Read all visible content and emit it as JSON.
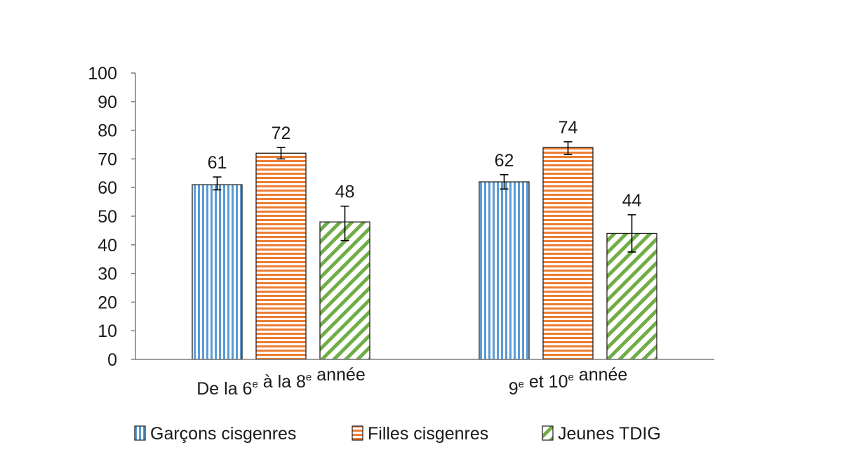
{
  "chart_data": {
    "type": "bar",
    "title": "",
    "xlabel": "",
    "ylabel": "",
    "ylim": [
      0,
      100
    ],
    "yticks": [
      0,
      10,
      20,
      30,
      40,
      50,
      60,
      70,
      80,
      90,
      100
    ],
    "grid": false,
    "legend_position": "bottom",
    "categories": [
      {
        "parts": [
          [
            "De la 6",
            false
          ],
          [
            "e",
            true
          ],
          [
            " à la 8",
            false
          ],
          [
            "e",
            true
          ],
          [
            " année",
            false
          ]
        ]
      },
      {
        "parts": [
          [
            "9",
            false
          ],
          [
            "e",
            true
          ],
          [
            " et 10",
            false
          ],
          [
            "e",
            true
          ],
          [
            " année",
            false
          ]
        ]
      }
    ],
    "series": [
      {
        "name": "Garçons cisgenres",
        "pattern": "vertical-stripes",
        "color": "#5b9bd5",
        "values": [
          61,
          62
        ],
        "labels": [
          "61",
          "62"
        ],
        "error_low": [
          59.2,
          59.5
        ],
        "error_high": [
          63.7,
          64.5
        ]
      },
      {
        "name": "Filles cisgenres",
        "pattern": "horizontal-stripes",
        "color": "#ed7d31",
        "values": [
          72,
          74
        ],
        "labels": [
          "72",
          "74"
        ],
        "error_low": [
          70,
          71.5
        ],
        "error_high": [
          74,
          76
        ]
      },
      {
        "name": "Jeunes TDIG",
        "pattern": "diagonal-stripes",
        "color": "#70ad47",
        "values": [
          48,
          44
        ],
        "labels": [
          "48",
          "44"
        ],
        "error_low": [
          41.5,
          37.5
        ],
        "error_high": [
          53.5,
          50.5
        ]
      }
    ]
  }
}
